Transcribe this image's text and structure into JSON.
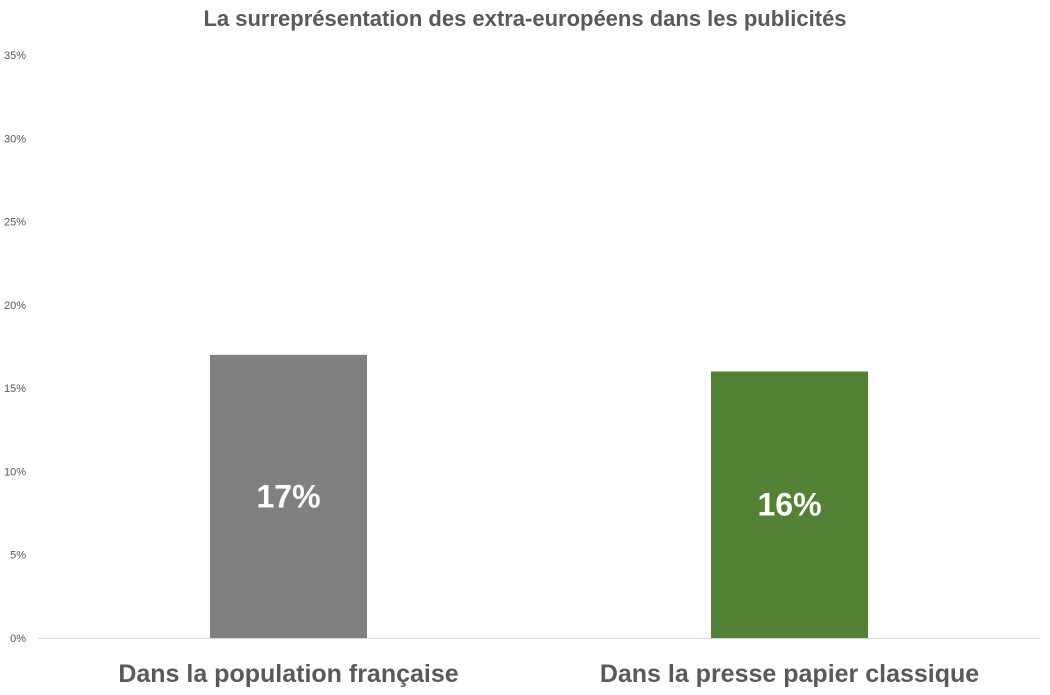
{
  "chart_data": {
    "type": "bar",
    "title": "La surreprésentation des extra-européens dans les publicités",
    "xlabel": "",
    "ylabel": "",
    "categories": [
      "Dans la population française",
      "Dans la presse papier classique"
    ],
    "values": [
      0.17,
      0.16
    ],
    "data_labels": [
      "17%",
      "16%"
    ],
    "bar_colors": [
      "#808080",
      "#538135"
    ],
    "ylim": [
      0,
      0.35
    ],
    "yticks": [
      0,
      0.05,
      0.1,
      0.15,
      0.2,
      0.25,
      0.3,
      0.35
    ],
    "ytick_labels": [
      "0%",
      "5%",
      "10%",
      "15%",
      "20%",
      "25%",
      "30%",
      "35%"
    ],
    "grid": false,
    "legend": "none"
  }
}
